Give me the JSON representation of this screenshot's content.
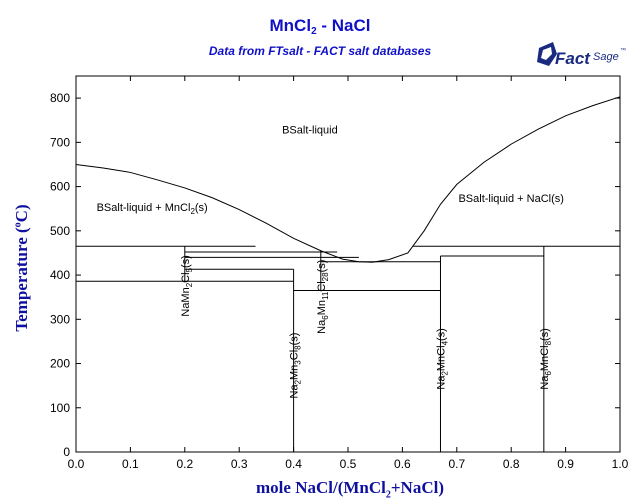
{
  "title": {
    "main": "MnCl",
    "main_sub": "2",
    "main_rest": " - NaCl",
    "subtitle": "Data from FTsalt - FACT salt databases"
  },
  "logo": {
    "text_bold": "Fact",
    "text_italic": "Sage",
    "mark": "™"
  },
  "axes": {
    "xlabel_pre": "mole NaCl/(MnCl",
    "xlabel_sub": "2",
    "xlabel_post": "+NaCl)",
    "ylabel_pre": "Temperature (",
    "ylabel_deg": "o",
    "ylabel_post": "C)"
  },
  "chart_data": {
    "type": "line",
    "xlim": [
      0,
      1
    ],
    "ylim": [
      0,
      850
    ],
    "x_ticks": [
      "0.0",
      "0.1",
      "0.2",
      "0.3",
      "0.4",
      "0.5",
      "0.6",
      "0.7",
      "0.8",
      "0.9",
      "1.0"
    ],
    "y_ticks": [
      "0",
      "100",
      "200",
      "300",
      "400",
      "500",
      "600",
      "700",
      "800"
    ],
    "liquidus_left": [
      [
        0.0,
        650
      ],
      [
        0.05,
        642
      ],
      [
        0.1,
        632
      ],
      [
        0.15,
        615
      ],
      [
        0.2,
        597
      ],
      [
        0.25,
        575
      ],
      [
        0.3,
        548
      ],
      [
        0.35,
        517
      ],
      [
        0.4,
        483
      ],
      [
        0.45,
        455
      ],
      [
        0.49,
        436
      ],
      [
        0.52,
        430
      ],
      [
        0.545,
        429
      ]
    ],
    "liquidus_right": [
      [
        0.545,
        429
      ],
      [
        0.575,
        435
      ],
      [
        0.61,
        450
      ],
      [
        0.64,
        500
      ],
      [
        0.67,
        560
      ],
      [
        0.7,
        605
      ],
      [
        0.75,
        655
      ],
      [
        0.8,
        696
      ],
      [
        0.85,
        730
      ],
      [
        0.9,
        760
      ],
      [
        0.95,
        783
      ],
      [
        1.0,
        803
      ]
    ],
    "horizontal_lines": [
      {
        "y": 465,
        "x0": 0.0,
        "x1": 0.33
      },
      {
        "y": 465,
        "x0": 0.62,
        "x1": 1.0
      },
      {
        "y": 452,
        "x0": 0.2,
        "x1": 0.48
      },
      {
        "y": 443,
        "x0": 0.67,
        "x1": 0.86
      },
      {
        "y": 440,
        "x0": 0.2,
        "x1": 0.52
      },
      {
        "y": 430,
        "x0": 0.45,
        "x1": 0.67
      },
      {
        "y": 413,
        "x0": 0.2,
        "x1": 0.4
      },
      {
        "y": 386,
        "x0": 0.0,
        "x1": 0.4
      },
      {
        "y": 365,
        "x0": 0.4,
        "x1": 0.67
      }
    ],
    "vertical_lines": [
      {
        "x": 0.2,
        "y0": 386,
        "y1": 465
      },
      {
        "x": 0.4,
        "y0": 0,
        "y1": 413
      },
      {
        "x": 0.45,
        "y0": 365,
        "y1": 455
      },
      {
        "x": 0.67,
        "y0": 0,
        "y1": 443
      },
      {
        "x": 0.86,
        "y0": 0,
        "y1": 465
      }
    ],
    "region_labels": [
      {
        "x": 0.43,
        "y": 720,
        "text": "BSalt-liquid"
      },
      {
        "x": 0.14,
        "y": 545,
        "text": "BSalt-liquid + MnCl",
        "sub": "2",
        "post": "(s)"
      },
      {
        "x": 0.8,
        "y": 565,
        "text": "BSalt-liquid + NaCl(s)"
      }
    ],
    "phase_labels": [
      {
        "x": 0.2,
        "y": 445,
        "parts": [
          [
            "NaMn",
            false
          ],
          [
            "2",
            true
          ],
          [
            "Cl",
            false
          ],
          [
            "5",
            true
          ],
          [
            "(s)",
            false
          ]
        ]
      },
      {
        "x": 0.45,
        "y": 435,
        "parts": [
          [
            "Na",
            false
          ],
          [
            "6",
            true
          ],
          [
            "Mn",
            false
          ],
          [
            "11",
            true
          ],
          [
            "Cl",
            false
          ],
          [
            "28",
            true
          ],
          [
            "(s)",
            false
          ]
        ]
      },
      {
        "x": 0.4,
        "y": 270,
        "parts": [
          [
            "Na",
            false
          ],
          [
            "2",
            true
          ],
          [
            "Mn",
            false
          ],
          [
            "3",
            true
          ],
          [
            "Cl",
            false
          ],
          [
            "8",
            true
          ],
          [
            "(s)",
            false
          ]
        ]
      },
      {
        "x": 0.67,
        "y": 280,
        "parts": [
          [
            "Na",
            false
          ],
          [
            "2",
            true
          ],
          [
            "MnCl",
            false
          ],
          [
            "4",
            true
          ],
          [
            "(s)",
            false
          ]
        ]
      },
      {
        "x": 0.86,
        "y": 280,
        "parts": [
          [
            "Na",
            false
          ],
          [
            "6",
            true
          ],
          [
            "MnCl",
            false
          ],
          [
            "8",
            true
          ],
          [
            "(s)",
            false
          ]
        ]
      }
    ]
  }
}
